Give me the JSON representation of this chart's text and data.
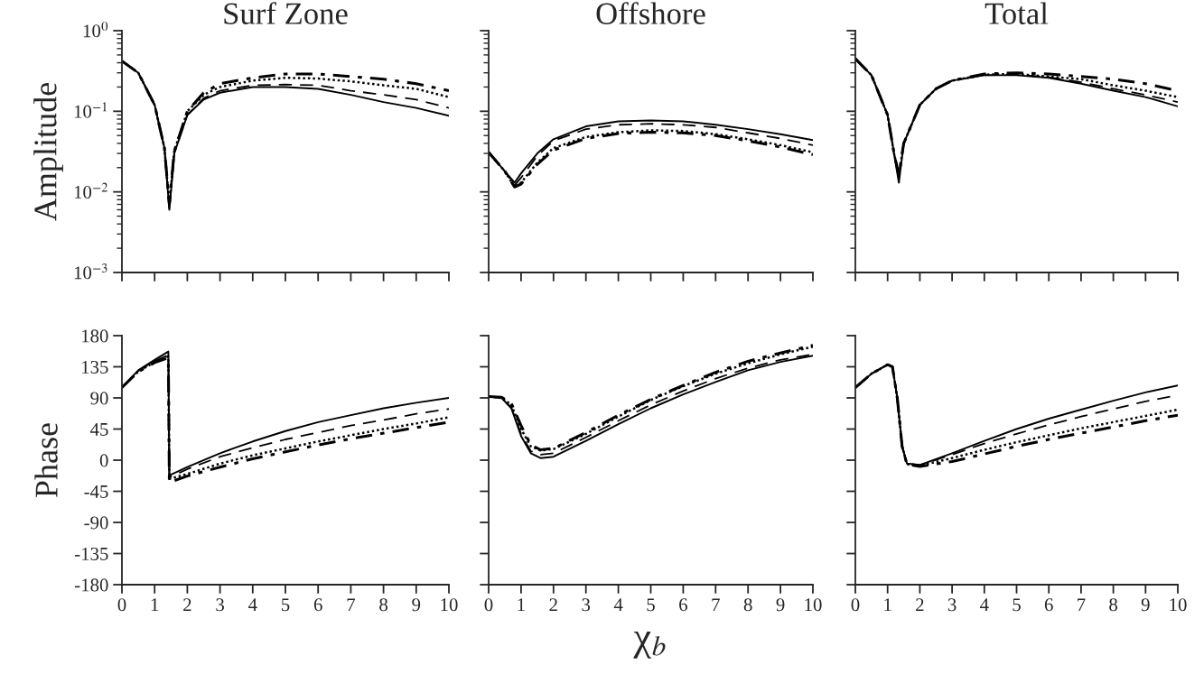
{
  "chart_data": [
    {
      "type": "line",
      "title": "Surf Zone",
      "ylabel": "Amplitude",
      "log": "y",
      "xlim": [
        0,
        10
      ],
      "xticks": [
        0,
        1,
        2,
        3,
        4,
        5,
        6,
        7,
        8,
        9,
        10
      ],
      "ylim": [
        0.001,
        1
      ],
      "yticks": [
        {
          "value": 0.001,
          "label": "10$^{−3}$"
        },
        {
          "value": 0.01,
          "label": "10$^{−2}$"
        },
        {
          "value": 0.1,
          "label": "10$^{−1}$"
        },
        {
          "value": 1,
          "label": "10$^{0}$"
        }
      ],
      "tick_labels": "y",
      "grid": false,
      "x": [
        0,
        0.5,
        1,
        1.3,
        1.45,
        1.6,
        2,
        2.5,
        3,
        4,
        5,
        6,
        7,
        8,
        9,
        10
      ],
      "series": [
        {
          "color": "#000000",
          "line_style": "solid",
          "values": [
            0.42,
            0.3,
            0.12,
            0.035,
            0.006,
            0.03,
            0.09,
            0.14,
            0.17,
            0.2,
            0.2,
            0.19,
            0.16,
            0.13,
            0.11,
            0.088
          ]
        },
        {
          "color": "#000000",
          "line_style": "dashed",
          "values": [
            0.42,
            0.3,
            0.12,
            0.035,
            0.006,
            0.03,
            0.09,
            0.145,
            0.18,
            0.21,
            0.215,
            0.21,
            0.18,
            0.16,
            0.14,
            0.11
          ]
        },
        {
          "color": "#000000",
          "line_style": "dotted",
          "values": [
            0.42,
            0.3,
            0.12,
            0.035,
            0.007,
            0.032,
            0.1,
            0.16,
            0.2,
            0.24,
            0.26,
            0.255,
            0.235,
            0.21,
            0.19,
            0.15
          ]
        },
        {
          "color": "#000000",
          "line_style": "dashdot",
          "values": [
            0.42,
            0.3,
            0.12,
            0.035,
            0.007,
            0.032,
            0.1,
            0.17,
            0.22,
            0.26,
            0.29,
            0.29,
            0.27,
            0.25,
            0.22,
            0.18
          ]
        }
      ]
    },
    {
      "type": "line",
      "title": "Offshore",
      "log": "y",
      "xlim": [
        0,
        10
      ],
      "xticks": [
        0,
        1,
        2,
        3,
        4,
        5,
        6,
        7,
        8,
        9,
        10
      ],
      "ylim": [
        0.001,
        1
      ],
      "yticks": [
        {
          "value": 0.001,
          "label": null
        },
        {
          "value": 0.01,
          "label": null
        },
        {
          "value": 0.1,
          "label": null
        },
        {
          "value": 1,
          "label": null
        }
      ],
      "tick_labels": false,
      "grid": false,
      "x": [
        0,
        0.5,
        0.8,
        1,
        1.5,
        2,
        3,
        4,
        5,
        6,
        7,
        8,
        9,
        10
      ],
      "series": [
        {
          "color": "#000000",
          "line_style": "solid",
          "values": [
            0.031,
            0.018,
            0.013,
            0.017,
            0.03,
            0.045,
            0.065,
            0.075,
            0.077,
            0.075,
            0.068,
            0.06,
            0.052,
            0.044
          ]
        },
        {
          "color": "#000000",
          "line_style": "dashed",
          "values": [
            0.031,
            0.018,
            0.012,
            0.015,
            0.028,
            0.043,
            0.06,
            0.068,
            0.07,
            0.068,
            0.063,
            0.054,
            0.046,
            0.038
          ]
        },
        {
          "color": "#000000",
          "line_style": "dotted",
          "values": [
            0.031,
            0.018,
            0.0115,
            0.013,
            0.023,
            0.035,
            0.048,
            0.055,
            0.058,
            0.057,
            0.052,
            0.045,
            0.038,
            0.031
          ]
        },
        {
          "color": "#000000",
          "line_style": "dashdot",
          "values": [
            0.031,
            0.018,
            0.0115,
            0.0125,
            0.022,
            0.033,
            0.046,
            0.053,
            0.055,
            0.054,
            0.05,
            0.043,
            0.036,
            0.029
          ]
        }
      ]
    },
    {
      "type": "line",
      "title": "Total",
      "log": "y",
      "xlim": [
        0,
        10
      ],
      "xticks": [
        0,
        1,
        2,
        3,
        4,
        5,
        6,
        7,
        8,
        9,
        10
      ],
      "ylim": [
        0.001,
        1
      ],
      "yticks": [
        {
          "value": 0.001,
          "label": null
        },
        {
          "value": 0.01,
          "label": null
        },
        {
          "value": 0.1,
          "label": null
        },
        {
          "value": 1,
          "label": null
        }
      ],
      "tick_labels": false,
      "grid": false,
      "x": [
        0,
        0.5,
        1,
        1.2,
        1.35,
        1.5,
        2,
        2.5,
        3,
        4,
        5,
        6,
        7,
        8,
        9,
        10
      ],
      "series": [
        {
          "color": "#000000",
          "line_style": "solid",
          "values": [
            0.45,
            0.28,
            0.09,
            0.03,
            0.013,
            0.04,
            0.12,
            0.19,
            0.24,
            0.28,
            0.28,
            0.26,
            0.22,
            0.18,
            0.15,
            0.115
          ]
        },
        {
          "color": "#000000",
          "line_style": "dashed",
          "values": [
            0.45,
            0.28,
            0.09,
            0.03,
            0.016,
            0.04,
            0.12,
            0.19,
            0.24,
            0.28,
            0.285,
            0.265,
            0.23,
            0.19,
            0.16,
            0.13
          ]
        },
        {
          "color": "#000000",
          "line_style": "dotted",
          "values": [
            0.45,
            0.28,
            0.09,
            0.03,
            0.016,
            0.04,
            0.12,
            0.19,
            0.24,
            0.285,
            0.29,
            0.27,
            0.25,
            0.21,
            0.18,
            0.15
          ]
        },
        {
          "color": "#000000",
          "line_style": "dashdot",
          "values": [
            0.45,
            0.28,
            0.09,
            0.03,
            0.016,
            0.04,
            0.12,
            0.19,
            0.24,
            0.29,
            0.3,
            0.29,
            0.27,
            0.25,
            0.22,
            0.18
          ]
        }
      ]
    },
    {
      "type": "line",
      "ylabel": "Phase",
      "xlim": [
        0,
        10
      ],
      "xticks": [
        0,
        1,
        2,
        3,
        4,
        5,
        6,
        7,
        8,
        9,
        10
      ],
      "ylim": [
        -180,
        180
      ],
      "yticks": [
        -180,
        -135,
        -90,
        -45,
        0,
        45,
        90,
        135,
        180
      ],
      "grid": false,
      "x": [
        0,
        0.5,
        1,
        1.42,
        1.45,
        2,
        3,
        4,
        5,
        6,
        7,
        8,
        9,
        10
      ],
      "series": [
        {
          "color": "#000000",
          "line_style": "solid",
          "values": [
            105,
            130,
            145,
            157,
            -22,
            -10,
            10,
            27,
            42,
            55,
            65,
            75,
            83,
            90
          ]
        },
        {
          "color": "#000000",
          "line_style": "dashed",
          "values": [
            105,
            129,
            143,
            152,
            -25,
            -13,
            5,
            18,
            30,
            40,
            50,
            58,
            67,
            74
          ]
        },
        {
          "color": "#000000",
          "line_style": "dotted",
          "values": [
            105,
            128,
            142,
            150,
            -27,
            -20,
            -5,
            7,
            17,
            27,
            36,
            45,
            53,
            62
          ]
        },
        {
          "color": "#000000",
          "line_style": "dashdot",
          "values": [
            105,
            128,
            141,
            148,
            -32,
            -23,
            -10,
            2,
            12,
            22,
            31,
            39,
            47,
            55
          ]
        }
      ]
    },
    {
      "type": "line",
      "xlabel": "χ$_{b}$",
      "xlim": [
        0,
        10
      ],
      "xticks": [
        0,
        1,
        2,
        3,
        4,
        5,
        6,
        7,
        8,
        9,
        10
      ],
      "ylim": [
        -180,
        180
      ],
      "yticks": [
        -180,
        -135,
        -90,
        -45,
        0,
        45,
        90,
        135,
        180
      ],
      "tick_labels": "x",
      "grid": false,
      "x": [
        0,
        0.4,
        0.7,
        1,
        1.3,
        1.6,
        2,
        3,
        4,
        5,
        6,
        7,
        8,
        9,
        10
      ],
      "series": [
        {
          "color": "#000000",
          "line_style": "solid",
          "values": [
            92,
            90,
            75,
            35,
            10,
            3,
            5,
            28,
            52,
            75,
            95,
            113,
            130,
            142,
            151
          ]
        },
        {
          "color": "#000000",
          "line_style": "dashed",
          "values": [
            92,
            90,
            76,
            38,
            13,
            8,
            10,
            33,
            57,
            80,
            100,
            118,
            133,
            145,
            153
          ]
        },
        {
          "color": "#000000",
          "line_style": "dotted",
          "values": [
            92,
            90,
            80,
            45,
            20,
            14,
            16,
            38,
            63,
            87,
            107,
            125,
            140,
            153,
            164
          ]
        },
        {
          "color": "#000000",
          "line_style": "dashdot",
          "values": [
            92,
            91,
            82,
            50,
            22,
            15,
            17,
            40,
            65,
            88,
            108,
            127,
            143,
            155,
            166
          ]
        }
      ]
    },
    {
      "type": "line",
      "xlim": [
        0,
        10
      ],
      "xticks": [
        0,
        1,
        2,
        3,
        4,
        5,
        6,
        7,
        8,
        9,
        10
      ],
      "ylim": [
        -180,
        180
      ],
      "yticks": [
        -180,
        -135,
        -90,
        -45,
        0,
        45,
        90,
        135,
        180
      ],
      "tick_labels": "x",
      "grid": false,
      "x": [
        0,
        0.5,
        1,
        1.15,
        1.3,
        1.45,
        1.6,
        2,
        3,
        4,
        5,
        6,
        7,
        8,
        9,
        10
      ],
      "series": [
        {
          "color": "#000000",
          "line_style": "solid",
          "values": [
            105,
            125,
            138,
            135,
            90,
            20,
            -5,
            -7,
            10,
            28,
            45,
            60,
            73,
            86,
            98,
            108
          ]
        },
        {
          "color": "#000000",
          "line_style": "dashed",
          "values": [
            105,
            125,
            138,
            135,
            90,
            20,
            -5,
            -7,
            8,
            24,
            38,
            51,
            63,
            74,
            85,
            94
          ]
        },
        {
          "color": "#000000",
          "line_style": "dotted",
          "values": [
            105,
            125,
            138,
            135,
            90,
            20,
            -6,
            -8,
            3,
            15,
            26,
            36,
            46,
            55,
            64,
            73
          ]
        },
        {
          "color": "#000000",
          "line_style": "dashdot",
          "values": [
            105,
            125,
            138,
            135,
            90,
            20,
            -6,
            -9,
            -2,
            9,
            20,
            30,
            39,
            48,
            57,
            65
          ]
        }
      ]
    }
  ]
}
